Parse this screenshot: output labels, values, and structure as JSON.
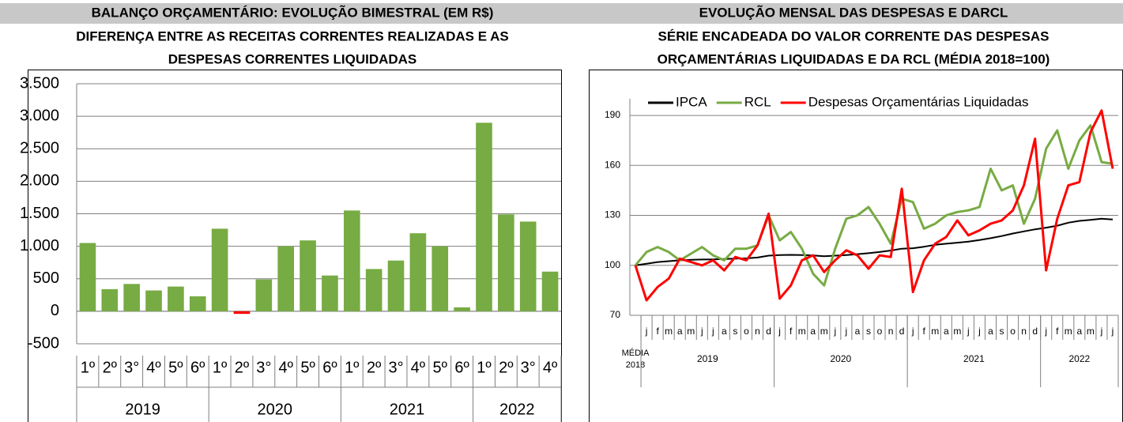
{
  "chart_data": [
    {
      "type": "bar",
      "title": "BALANÇO ORÇAMENTÁRIO:  EVOLUÇÃO BIMESTRAL (EM R$)",
      "subtitle": [
        "DIFERENÇA ENTRE AS RECEITAS CORRENTES REALIZADAS E AS",
        "DESPESAS CORRENTES LIQUIDADAS"
      ],
      "categories": [
        "1º",
        "2º",
        "3°",
        "4º",
        "5º",
        "6º",
        "1º",
        "2º",
        "3°",
        "4º",
        "5º",
        "6º",
        "1º",
        "2º",
        "3°",
        "4º",
        "5º",
        "6º",
        "1º",
        "2º",
        "3°",
        "4º"
      ],
      "group_labels": [
        "2019",
        "2020",
        "2021",
        "2022"
      ],
      "group_sizes": [
        6,
        6,
        6,
        4
      ],
      "values": [
        1050,
        340,
        420,
        320,
        380,
        230,
        1270,
        -40,
        490,
        1000,
        1090,
        550,
        1550,
        650,
        780,
        1200,
        1000,
        60,
        2900,
        1490,
        1380,
        610
      ],
      "color": "#77ab43",
      "negative_color": "#ff0000",
      "ylim": [
        -500,
        3500
      ],
      "yticks": [
        -500,
        0,
        500,
        {
          "value": 1000,
          "label": "1.000"
        },
        {
          "value": 1500,
          "label": "1.500"
        },
        {
          "value": 2000,
          "label": "2.000"
        },
        {
          "value": 2500,
          "label": "2.500"
        },
        {
          "value": 3000,
          "label": "3.000"
        },
        {
          "value": 3500,
          "label": "3.500"
        }
      ],
      "grid": true
    },
    {
      "type": "line",
      "title": "EVOLUÇÃO MENSAL DAS DESPESAS E DARCL",
      "subtitle": [
        "SÉRIE ENCADEADA DO VALOR CORRENTE DAS DESPESAS",
        "ORÇAMENTÁRIAS LIQUIDADAS E DA RCL (MÉDIA 2018=100)"
      ],
      "categories": [
        "MÉDIA 2018",
        "j",
        "f",
        "m",
        "a",
        "m",
        "j",
        "j",
        "a",
        "s",
        "o",
        "n",
        "d",
        "j",
        "f",
        "m",
        "a",
        "m",
        "j",
        "j",
        "a",
        "s",
        "o",
        "n",
        "d",
        "j",
        "f",
        "m",
        "a",
        "m",
        "j",
        "j",
        "a",
        "s",
        "o",
        "n",
        "d",
        "j",
        "f",
        "m",
        "a",
        "m",
        "j",
        "j"
      ],
      "group_labels": [
        "2019",
        "2020",
        "2021",
        "2022"
      ],
      "group_sizes": [
        12,
        12,
        12,
        7
      ],
      "series": [
        {
          "name": "IPCA",
          "color": "#000000",
          "values": [
            100,
            101,
            102,
            102.5,
            103,
            103.3,
            103.5,
            103.6,
            103.8,
            104,
            104.2,
            104.7,
            105.8,
            106.2,
            106.3,
            106.2,
            105.9,
            105.5,
            105.8,
            106.2,
            106.7,
            107.3,
            108,
            108.9,
            110,
            110.3,
            111.2,
            112.3,
            113,
            113.6,
            114.2,
            115.2,
            116.3,
            117.6,
            119.1,
            120.4,
            121.6,
            122.6,
            123.8,
            125.6,
            126.7,
            127.3,
            128,
            127.5
          ]
        },
        {
          "name": "RCL",
          "color": "#77ab43",
          "values": [
            100,
            108,
            111,
            108,
            103,
            107,
            111,
            106,
            103,
            110,
            110,
            112,
            130,
            115,
            120,
            110,
            95,
            88,
            110,
            128,
            130,
            135,
            125,
            113,
            140,
            138,
            122,
            125,
            130,
            132,
            133,
            135,
            158,
            145,
            148,
            125,
            140,
            170,
            181,
            158,
            175,
            184,
            162,
            161
          ]
        },
        {
          "name": "Despesas Orçamentárias Liquidadas",
          "color": "#ff0000",
          "values": [
            100,
            79,
            87,
            92,
            104,
            102,
            100,
            103,
            97,
            105,
            103,
            112,
            131,
            80,
            88,
            103,
            106,
            96,
            103,
            109,
            106,
            98,
            106,
            105,
            146,
            84,
            103,
            113,
            117,
            127,
            118,
            121,
            125,
            127,
            133,
            148,
            176,
            97,
            128,
            148,
            150,
            180,
            193,
            158
          ]
        }
      ],
      "ylim": [
        70,
        200
      ],
      "yticks": [
        70,
        100,
        130,
        160,
        190
      ],
      "grid": true
    }
  ]
}
